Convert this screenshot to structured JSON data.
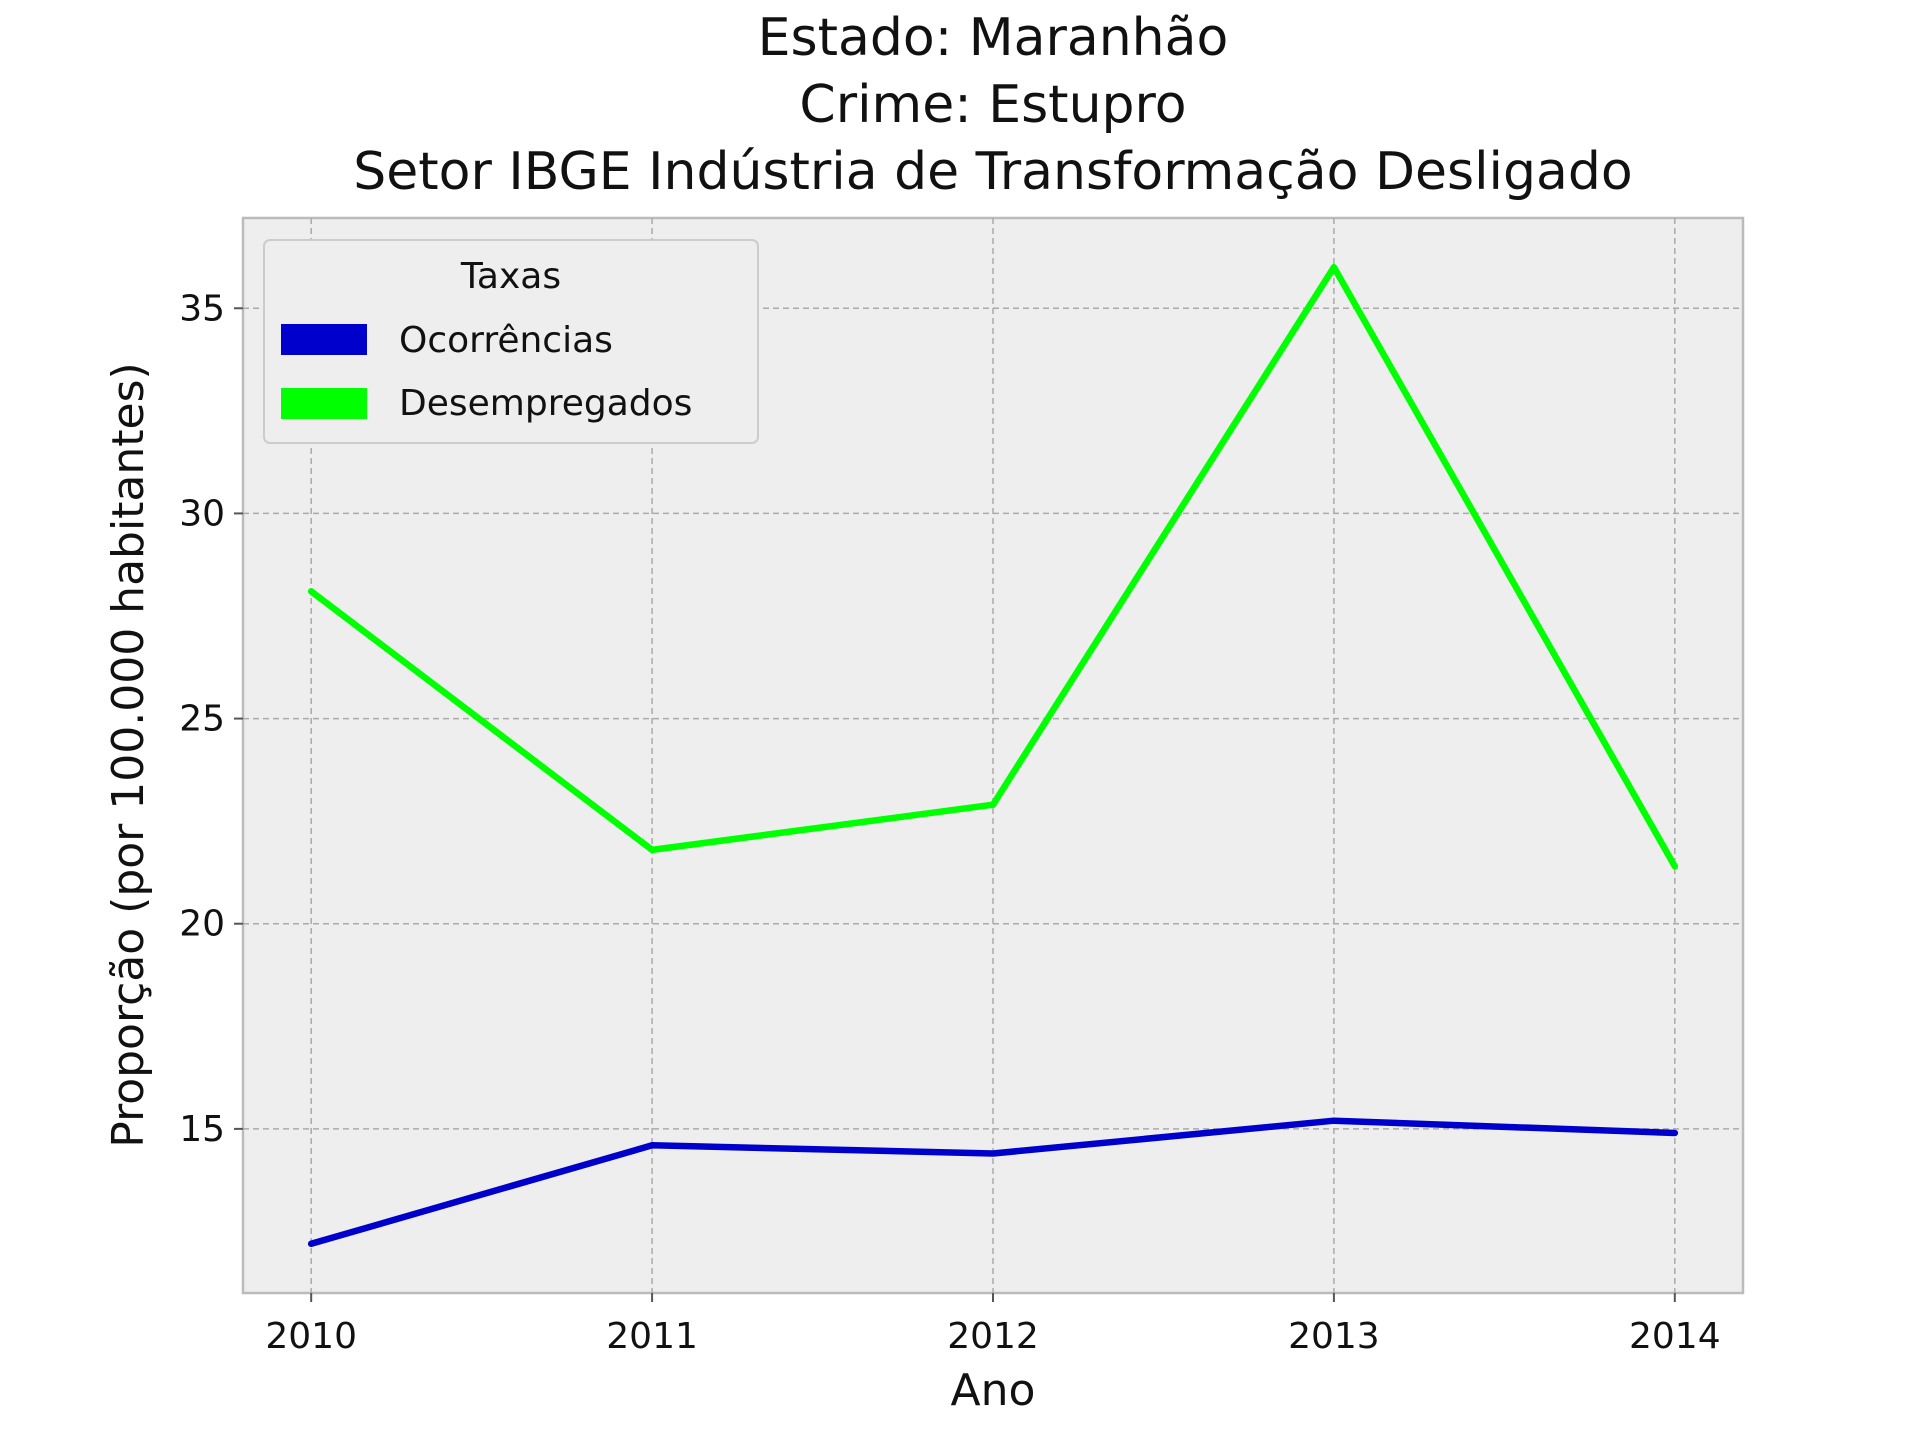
{
  "chart_data": {
    "type": "line",
    "title_lines": [
      "Estado: Maranhão",
      "Crime: Estupro",
      "Setor IBGE  Indústria de Transformação   Desligado"
    ],
    "xlabel": "Ano",
    "ylabel": "Proporção (por 100.000 habitantes)",
    "x": [
      2010,
      2011,
      2012,
      2013,
      2014
    ],
    "x_ticks": [
      "2010",
      "2011",
      "2012",
      "2013",
      "2014"
    ],
    "y_ticks": [
      "15",
      "20",
      "25",
      "30",
      "35"
    ],
    "ylim": [
      11.0,
      37.2
    ],
    "xlim": [
      2009.8,
      2014.2
    ],
    "grid": true,
    "legend": {
      "title": "Taxas",
      "position": "top-left",
      "entries": [
        "Ocorrências",
        "Desempregados"
      ]
    },
    "series": [
      {
        "name": "Ocorrências",
        "color": "#0000cc",
        "values": [
          12.2,
          14.6,
          14.4,
          15.2,
          14.9
        ]
      },
      {
        "name": "Desempregados",
        "color": "#00ff00",
        "values": [
          28.1,
          21.8,
          22.9,
          36.0,
          21.4
        ]
      }
    ]
  }
}
